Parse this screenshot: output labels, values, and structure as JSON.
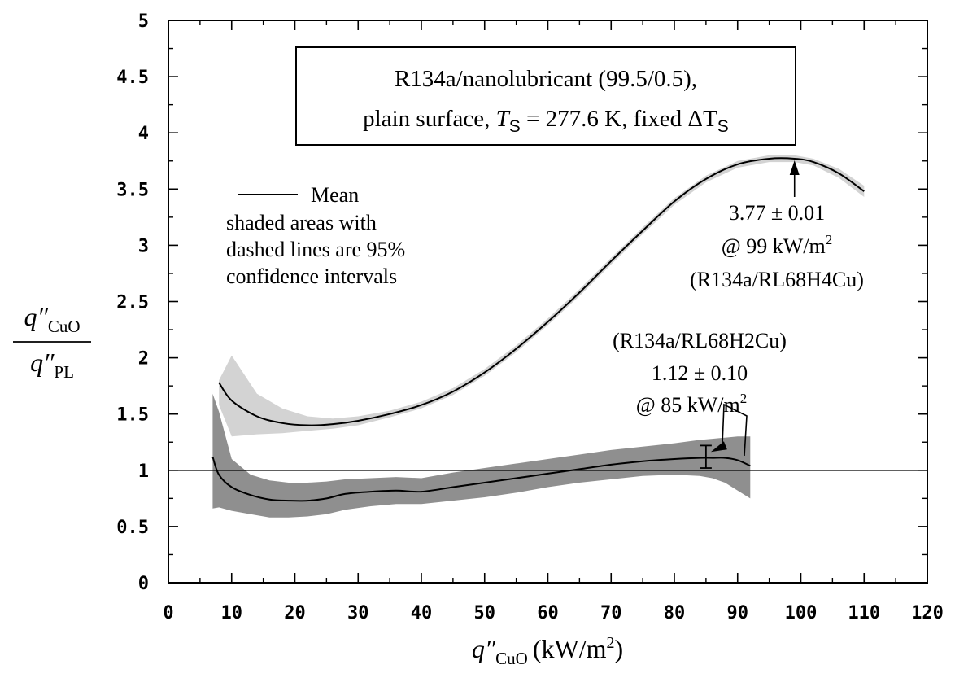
{
  "chart_data": {
    "type": "line",
    "title_line1": "R134a/nanolubricant (99.5/0.5),",
    "title_line2_prefix": "plain surface, ",
    "title_T": "T",
    "title_T_sub": "S",
    "title_line2_mid": " = 277.6 K, fixed ",
    "title_delta": "ΔT",
    "title_delta_sub": "S",
    "xlabel_main": "q″",
    "xlabel_sub": "CuO",
    "xlabel_units": "(kW/m",
    "xlabel_sup": "2",
    "xlabel_close": ")",
    "ylabel_num": "q″",
    "ylabel_num_sub": "CuO",
    "ylabel_den": "q″",
    "ylabel_den_sub": "PL",
    "xlim": [
      0,
      120
    ],
    "ylim": [
      0,
      5
    ],
    "xticks": [
      "0",
      "10",
      "20",
      "30",
      "40",
      "50",
      "60",
      "70",
      "80",
      "90",
      "100",
      "110",
      "120"
    ],
    "yticks": [
      "0",
      "0.5",
      "1",
      "1.5",
      "2",
      "2.5",
      "3",
      "3.5",
      "4",
      "4.5",
      "5"
    ],
    "legend": {
      "mean_label": "Mean",
      "note": [
        "shaded areas with",
        "dashed lines are 95%",
        "confidence intervals"
      ]
    },
    "reference_line_y": 1,
    "series": [
      {
        "name": "R134a/RL68H4Cu",
        "fill_color": "#d3d3d3",
        "x": [
          8,
          10,
          14,
          18,
          22,
          26,
          30,
          35,
          40,
          45,
          50,
          55,
          60,
          65,
          70,
          75,
          80,
          85,
          90,
          95,
          99,
          102,
          106,
          110
        ],
        "mean": [
          1.78,
          1.62,
          1.48,
          1.42,
          1.4,
          1.41,
          1.44,
          1.5,
          1.58,
          1.7,
          1.87,
          2.08,
          2.32,
          2.58,
          2.86,
          3.13,
          3.39,
          3.59,
          3.72,
          3.77,
          3.77,
          3.74,
          3.64,
          3.48
        ],
        "upper": [
          1.8,
          2.02,
          1.68,
          1.55,
          1.48,
          1.46,
          1.48,
          1.53,
          1.61,
          1.73,
          1.9,
          2.11,
          2.35,
          2.61,
          2.89,
          3.16,
          3.42,
          3.62,
          3.75,
          3.8,
          3.8,
          3.77,
          3.68,
          3.53
        ],
        "lower": [
          1.58,
          1.3,
          1.32,
          1.33,
          1.35,
          1.37,
          1.4,
          1.47,
          1.55,
          1.67,
          1.84,
          2.05,
          2.29,
          2.55,
          2.83,
          3.1,
          3.36,
          3.56,
          3.69,
          3.74,
          3.74,
          3.71,
          3.6,
          3.43
        ]
      },
      {
        "name": "R134a/RL68H2Cu",
        "fill_color": "#8f8f8f",
        "x": [
          7,
          8,
          10,
          13,
          16,
          19,
          22,
          25,
          28,
          32,
          36,
          40,
          45,
          50,
          55,
          60,
          65,
          70,
          75,
          80,
          84,
          86,
          88,
          90,
          92
        ],
        "mean": [
          1.12,
          0.96,
          0.85,
          0.78,
          0.74,
          0.73,
          0.73,
          0.75,
          0.79,
          0.81,
          0.82,
          0.81,
          0.85,
          0.89,
          0.93,
          0.97,
          1.01,
          1.05,
          1.08,
          1.1,
          1.11,
          1.11,
          1.11,
          1.09,
          1.04
        ],
        "upper": [
          1.68,
          1.52,
          1.1,
          0.96,
          0.91,
          0.89,
          0.89,
          0.9,
          0.92,
          0.93,
          0.94,
          0.93,
          0.98,
          1.02,
          1.06,
          1.1,
          1.14,
          1.18,
          1.21,
          1.24,
          1.27,
          1.28,
          1.29,
          1.3,
          1.3
        ],
        "lower": [
          0.66,
          0.67,
          0.64,
          0.61,
          0.58,
          0.58,
          0.59,
          0.61,
          0.65,
          0.68,
          0.7,
          0.7,
          0.73,
          0.76,
          0.8,
          0.85,
          0.89,
          0.92,
          0.95,
          0.96,
          0.95,
          0.93,
          0.89,
          0.82,
          0.75
        ]
      }
    ],
    "annotations": [
      {
        "target": "R134a/RL68H4Cu",
        "lines": [
          "3.77 ± 0.01",
          "@ 99 kW/m",
          "(R134a/RL68H4Cu)"
        ],
        "sup": "2",
        "point": [
          99,
          3.77
        ]
      },
      {
        "target": "R134a/RL68H2Cu",
        "lines": [
          "(R134a/RL68H2Cu)",
          "1.12 ± 0.10",
          "@ 85 kW/m"
        ],
        "sup": "2",
        "point": [
          85,
          1.12
        ],
        "error_bar": [
          1.02,
          1.22
        ]
      }
    ]
  }
}
